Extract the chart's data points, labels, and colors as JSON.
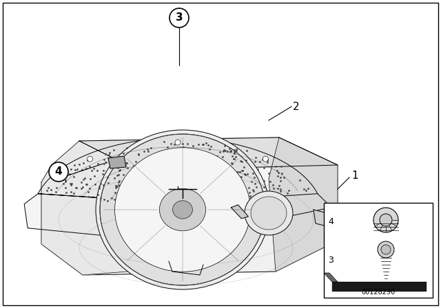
{
  "bg_color": "#ffffff",
  "diagram_number": "00128290",
  "line_color": "#000000",
  "grille_dot_color": "#666666",
  "light_gray": "#e0e0e0",
  "mid_gray": "#c0c0c0"
}
